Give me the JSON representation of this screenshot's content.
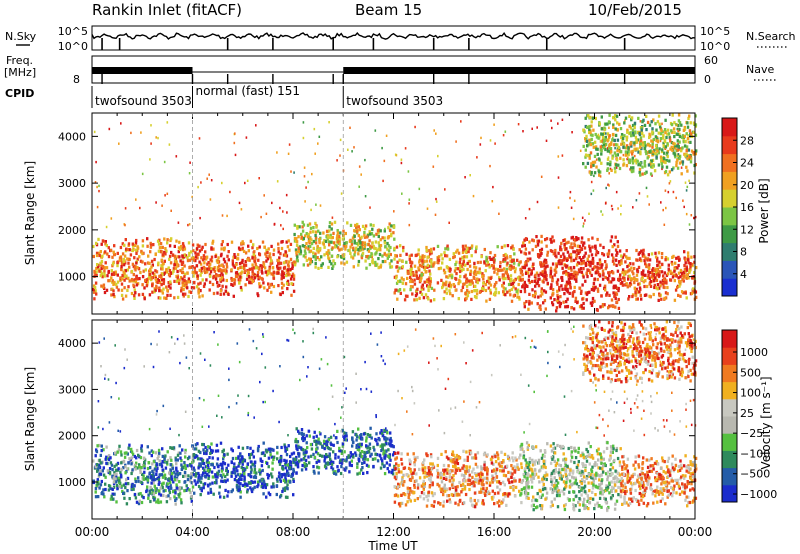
{
  "header": {
    "station": "Rankin Inlet (fitACF)",
    "beam": "Beam 15",
    "date": "10/Feb/2015"
  },
  "aux_panels": {
    "nsky_label": "N.Sky",
    "nsearch_label": "N.Search",
    "freq_label": "Freq.",
    "freq_unit": "[MHz]",
    "nave_label": "Nave",
    "cpid_label": "CPID",
    "noise_ticks": [
      "10^5",
      "10^0"
    ],
    "freq_ticks": [
      "8"
    ],
    "nave_ticks": [
      "60",
      "0"
    ],
    "cpid_segments": [
      {
        "name": "twofsound 3503",
        "start_h": 0.0,
        "end_h": 4.0
      },
      {
        "name": "normal (fast) 151",
        "start_h": 4.0,
        "end_h": 10.0
      },
      {
        "name": "twofsound 3503",
        "start_h": 10.0,
        "end_h": 24.0
      }
    ]
  },
  "colors": {
    "power_scale": [
      "#1a2fd0",
      "#2a55b8",
      "#2f7d6f",
      "#3e9a45",
      "#7cc544",
      "#d6d02f",
      "#f0a020",
      "#f07020",
      "#e83a1c",
      "#d81818"
    ],
    "velocity_scale": [
      "#1b2ccc",
      "#245ca8",
      "#2e8a5c",
      "#55c040",
      "#b8b8b0",
      "#c8c8c0",
      "#f0b020",
      "#f07a20",
      "#e8401c",
      "#d81818"
    ]
  },
  "chart_data": [
    {
      "type": "heatmap",
      "quantity": "Power",
      "ylabel": "Slant Range [km]",
      "xlabel": "",
      "ylim": [
        200,
        4500
      ],
      "xlim": [
        0,
        24
      ],
      "yticks": [
        1000,
        2000,
        3000,
        4000
      ],
      "colorbar": {
        "label": "Power [dB]",
        "range": [
          0,
          32
        ],
        "ticks": [
          "4",
          "8",
          "12",
          "16",
          "20",
          "24",
          "28"
        ]
      },
      "grid": false,
      "echo_regions": [
        {
          "start_h": 0.0,
          "end_h": 4.0,
          "range_min_km": 550,
          "range_max_km": 1850,
          "level": 0.75
        },
        {
          "start_h": 4.0,
          "end_h": 8.0,
          "range_min_km": 600,
          "range_max_km": 1800,
          "level": 0.8
        },
        {
          "start_h": 8.0,
          "end_h": 12.0,
          "range_min_km": 1200,
          "range_max_km": 2200,
          "level": 0.55
        },
        {
          "start_h": 12.0,
          "end_h": 17.0,
          "range_min_km": 500,
          "range_max_km": 1700,
          "level": 0.7
        },
        {
          "start_h": 17.0,
          "end_h": 21.0,
          "range_min_km": 300,
          "range_max_km": 1900,
          "level": 0.9
        },
        {
          "start_h": 21.0,
          "end_h": 24.0,
          "range_min_km": 500,
          "range_max_km": 1600,
          "level": 0.8
        },
        {
          "start_h": 19.5,
          "end_h": 24.0,
          "range_min_km": 3200,
          "range_max_km": 4500,
          "level": 0.5
        }
      ]
    },
    {
      "type": "heatmap",
      "quantity": "Velocity",
      "ylabel": "Slant Range [km]",
      "xlabel": "Time UT",
      "ylim": [
        200,
        4500
      ],
      "xlim": [
        0,
        24
      ],
      "yticks": [
        1000,
        2000,
        3000,
        4000
      ],
      "xticks": [
        "00:00",
        "04:00",
        "08:00",
        "12:00",
        "16:00",
        "20:00",
        "00:00"
      ],
      "colorbar": {
        "label": "Velocity [m s⁻¹]",
        "ticks": [
          "1000",
          "500",
          "100",
          "25",
          "−25",
          "−100",
          "−500",
          "−1000"
        ]
      },
      "grid": false,
      "echo_regions": [
        {
          "start_h": 0.0,
          "end_h": 4.0,
          "range_min_km": 550,
          "range_max_km": 1850,
          "level": 0.25
        },
        {
          "start_h": 4.0,
          "end_h": 8.0,
          "range_min_km": 700,
          "range_max_km": 1900,
          "level": 0.1
        },
        {
          "start_h": 8.0,
          "end_h": 12.0,
          "range_min_km": 1200,
          "range_max_km": 2200,
          "level": 0.15
        },
        {
          "start_h": 12.0,
          "end_h": 17.0,
          "range_min_km": 500,
          "range_max_km": 1700,
          "level": 0.7
        },
        {
          "start_h": 17.0,
          "end_h": 21.0,
          "range_min_km": 400,
          "range_max_km": 1900,
          "level": 0.45
        },
        {
          "start_h": 21.0,
          "end_h": 24.0,
          "range_min_km": 500,
          "range_max_km": 1600,
          "level": 0.72
        },
        {
          "start_h": 19.5,
          "end_h": 24.0,
          "range_min_km": 3200,
          "range_max_km": 4500,
          "level": 0.75
        }
      ]
    }
  ]
}
